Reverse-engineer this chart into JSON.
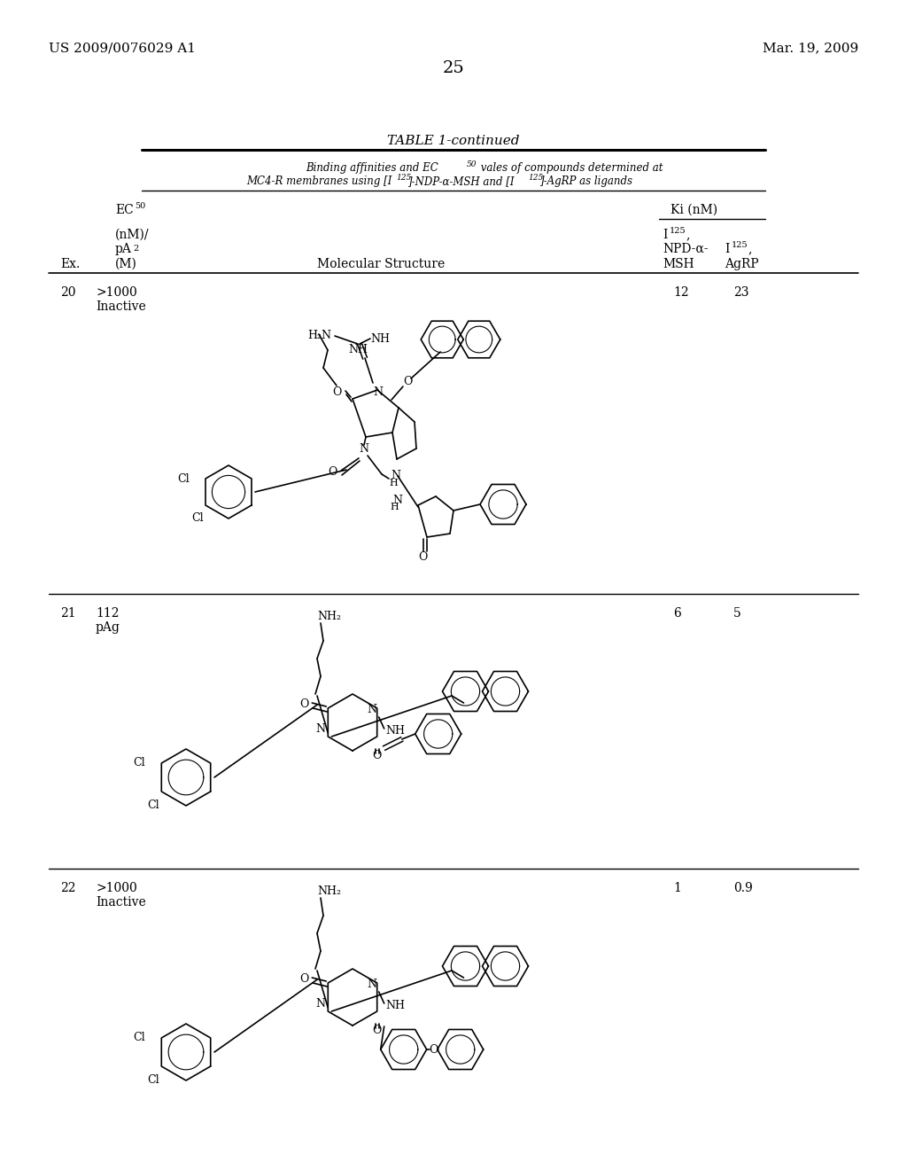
{
  "bg_color": "#ffffff",
  "header_left": "US 2009/0076029 A1",
  "header_right": "Mar. 19, 2009",
  "page_number": "25",
  "table_title": "TABLE 1-continued",
  "subtitle1a": "Binding affinities and EC",
  "subtitle1b": "50",
  "subtitle1c": " vales of compounds determined at",
  "subtitle2a": "MC4-R membranes using [I",
  "subtitle2b": "125",
  "subtitle2c": "]-NDP-α-MSH and [I",
  "subtitle2d": "125",
  "subtitle2e": "]-AgRP as ligands",
  "rows": [
    {
      "ex": "20",
      "ec50_1": ">1000",
      "ec50_2": "Inactive",
      "ki_msh": "12",
      "ki_agrp": "23"
    },
    {
      "ex": "21",
      "ec50_1": "112",
      "ec50_2": "pAg",
      "ki_msh": "6",
      "ki_agrp": "5"
    },
    {
      "ex": "22",
      "ec50_1": ">1000",
      "ec50_2": "Inactive",
      "ki_msh": "1",
      "ki_agrp": "0.9"
    }
  ]
}
